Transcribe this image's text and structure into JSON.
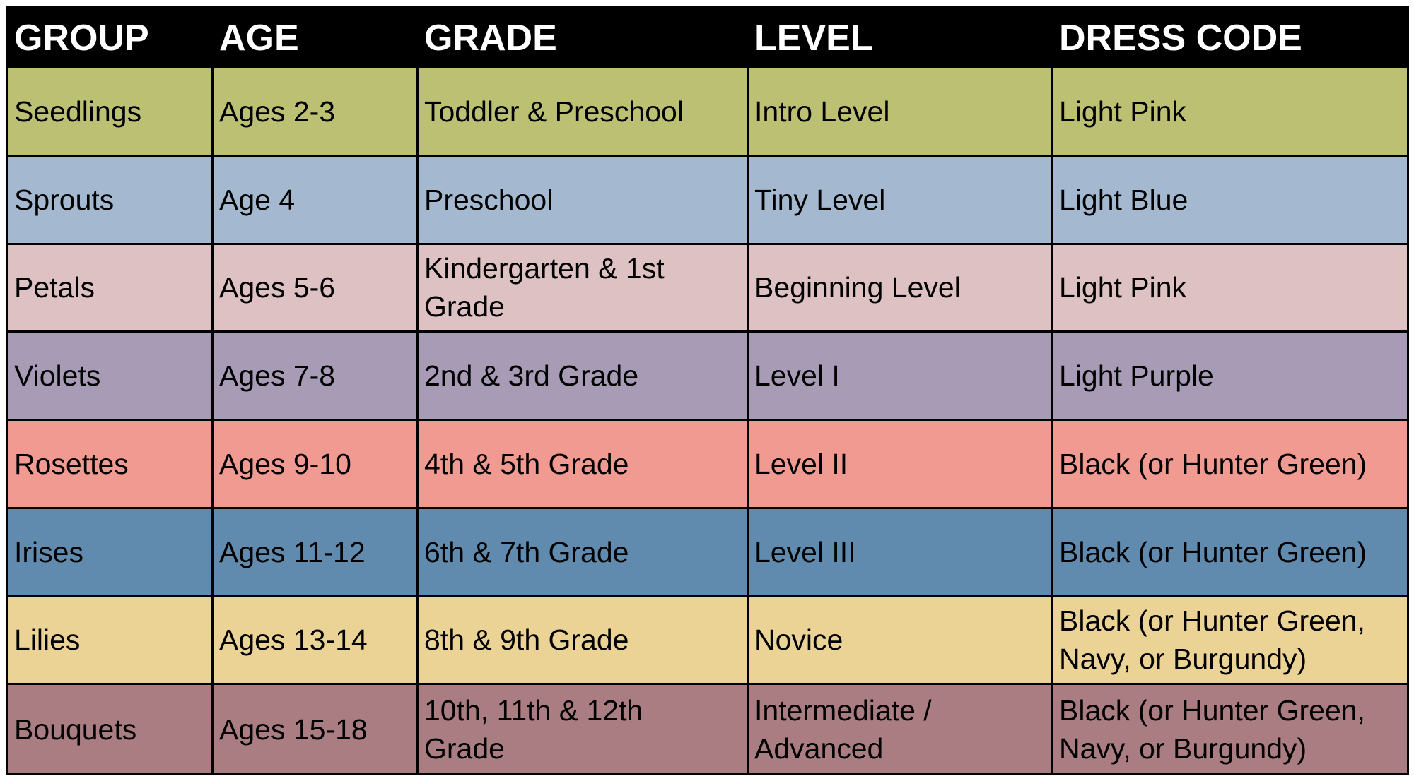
{
  "table": {
    "headers": [
      "GROUP",
      "AGE",
      "GRADE",
      "LEVEL",
      "DRESS CODE"
    ],
    "rows": [
      {
        "color": "#bcc073",
        "cells": [
          "Seedlings",
          "Ages 2-3",
          "Toddler & Preschool",
          "Intro Level",
          "Light Pink"
        ]
      },
      {
        "color": "#a4b9cf",
        "cells": [
          "Sprouts",
          "Age 4",
          "Preschool",
          "Tiny Level",
          "Light Blue"
        ]
      },
      {
        "color": "#dec1c2",
        "cells": [
          "Petals",
          "Ages 5-6",
          "Kindergarten & 1st Grade",
          "Beginning Level",
          "Light Pink"
        ]
      },
      {
        "color": "#a79bb6",
        "cells": [
          "Violets",
          "Ages 7-8",
          "2nd & 3rd Grade",
          "Level I",
          "Light Purple"
        ]
      },
      {
        "color": "#f09a91",
        "cells": [
          "Rosettes",
          "Ages 9-10",
          "4th & 5th Grade",
          "Level II",
          "Black (or Hunter Green)"
        ]
      },
      {
        "color": "#608bae",
        "cells": [
          "Irises",
          "Ages 11-12",
          "6th & 7th Grade",
          "Level III",
          "Black (or Hunter Green)"
        ]
      },
      {
        "color": "#ebd396",
        "cells": [
          "Lilies",
          "Ages 13-14",
          "8th & 9th Grade",
          "Novice",
          "Black (or Hunter Green, Navy, or Burgundy)"
        ]
      },
      {
        "color": "#a97d81",
        "cells": [
          "Bouquets",
          "Ages 15-18",
          "10th, 11th & 12th Grade",
          "Intermediate / Advanced",
          "Black (or Hunter Green, Navy, or Burgundy)"
        ]
      }
    ]
  }
}
